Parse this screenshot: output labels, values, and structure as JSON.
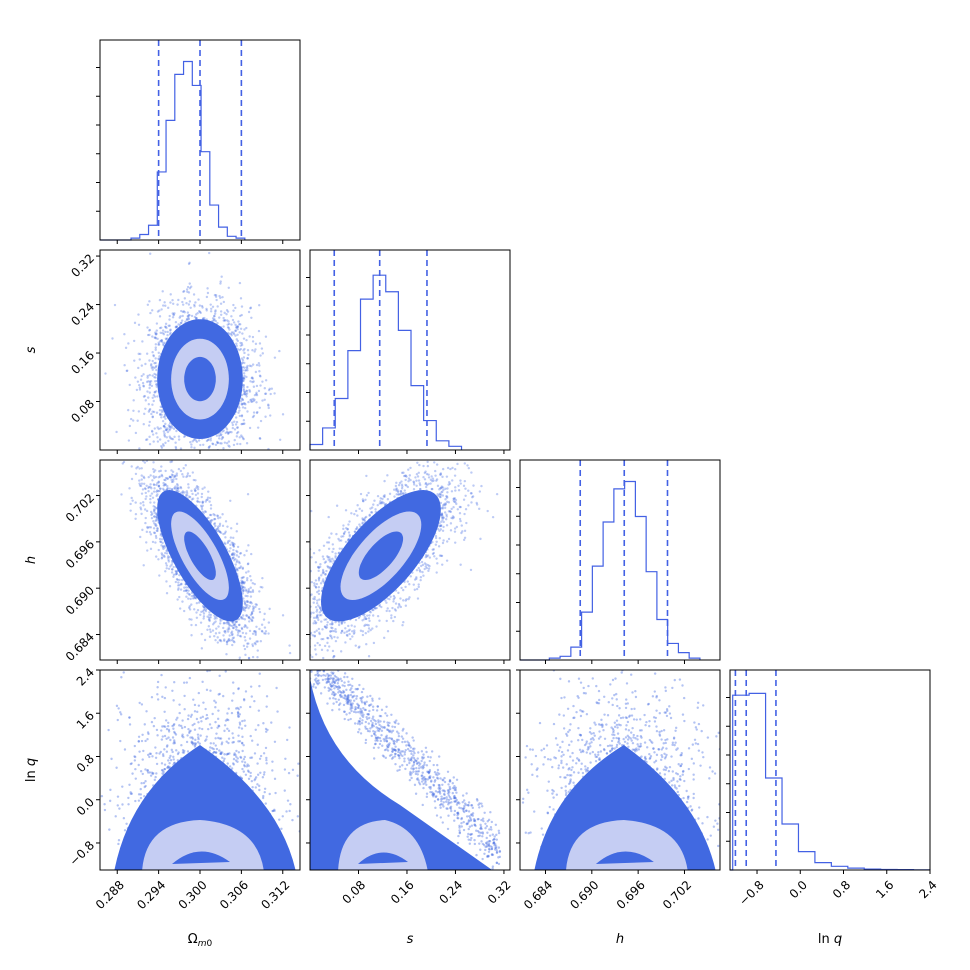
{
  "chart_data": {
    "type": "scatter",
    "subtype": "corner",
    "colors": {
      "main": "#4169e1",
      "hist": "#4361e4",
      "inner_contour": "#c5cdf3",
      "core": "#4169e1"
    },
    "params": [
      {
        "key": "omega",
        "label": "Ω",
        "label_sub": "m0",
        "range": [
          0.2855,
          0.3145
        ],
        "ticks": [
          "0.288",
          "0.294",
          "0.300",
          "0.306",
          "0.312"
        ],
        "tick_values": [
          0.288,
          0.294,
          0.3,
          0.306,
          0.312
        ],
        "quantiles": [
          0.294,
          0.3,
          0.306
        ]
      },
      {
        "key": "s",
        "label": "s",
        "label_sub": "",
        "range": [
          0.0,
          0.33
        ],
        "ticks": [
          "0.08",
          "0.16",
          "0.24",
          "0.32"
        ],
        "tick_values": [
          0.08,
          0.16,
          0.24,
          0.32
        ],
        "quantiles": [
          0.04,
          0.115,
          0.193
        ]
      },
      {
        "key": "h",
        "label": "h",
        "label_sub": "",
        "range": [
          0.6807,
          0.7066
        ],
        "ticks": [
          "0.684",
          "0.690",
          "0.696",
          "0.702"
        ],
        "tick_values": [
          0.684,
          0.69,
          0.696,
          0.702
        ],
        "quantiles": [
          0.6885,
          0.6942,
          0.6998
        ]
      },
      {
        "key": "lnq",
        "label": "ln",
        "label_sub": "",
        "label_var": "q",
        "range": [
          -1.3,
          2.4
        ],
        "ticks": [
          "−0.8",
          "0.0",
          "0.8",
          "1.6",
          "2.4"
        ],
        "tick_values": [
          -0.8,
          0.0,
          0.8,
          1.6,
          2.4
        ],
        "quantiles": [
          -1.2,
          -1.0,
          -0.45
        ]
      }
    ],
    "histograms": {
      "omega": [
        0.01,
        0.03,
        0.08,
        0.37,
        0.65,
        0.9,
        0.97,
        0.84,
        0.48,
        0.19,
        0.07,
        0.02,
        0.01
      ],
      "s": [
        0.03,
        0.12,
        0.28,
        0.54,
        0.82,
        0.95,
        0.86,
        0.65,
        0.35,
        0.16,
        0.05,
        0.02
      ],
      "h": [
        0.01,
        0.02,
        0.07,
        0.26,
        0.51,
        0.75,
        0.93,
        0.97,
        0.78,
        0.48,
        0.22,
        0.09,
        0.04,
        0.01
      ],
      "lnq": [
        0.95,
        0.96,
        0.5,
        0.25,
        0.1,
        0.04,
        0.02,
        0.01,
        0.005,
        0.003,
        0.002,
        0.001
      ]
    },
    "hist_edges": {
      "omega": [
        0.29,
        0.3065
      ],
      "s": [
        0.0,
        0.25
      ],
      "h": [
        0.6845,
        0.704
      ],
      "lnq": [
        -1.25,
        2.4
      ]
    },
    "contours": [
      {
        "x": "omega",
        "y": "s",
        "center": [
          0.3,
          0.117
        ],
        "sd": [
          0.0027,
          0.043
        ],
        "rho": 0.0
      },
      {
        "x": "omega",
        "y": "h",
        "center": [
          0.3,
          0.6942
        ],
        "sd": [
          0.0027,
          0.0037
        ],
        "rho": -0.72
      },
      {
        "x": "s",
        "y": "h",
        "center": [
          0.117,
          0.6942
        ],
        "sd": [
          0.043,
          0.0037
        ],
        "rho": 0.7
      }
    ],
    "lnq_panels": [
      {
        "x": "omega",
        "mode": "mound"
      },
      {
        "x": "s",
        "mode": "decay"
      },
      {
        "x": "h",
        "mode": "mound"
      }
    ],
    "xlabel": "Ωm0 / s / h / ln q"
  }
}
